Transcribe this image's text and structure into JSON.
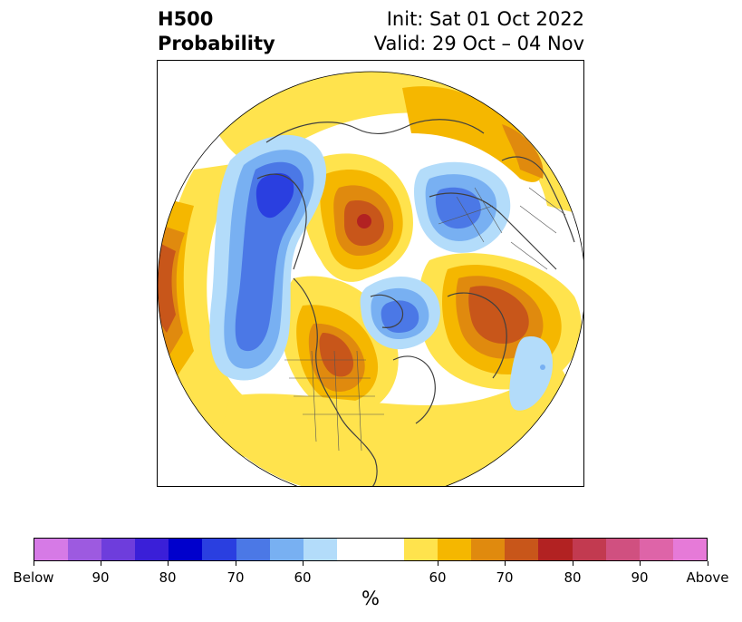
{
  "header": {
    "title_line1": "H500",
    "title_line2": "Probability",
    "init_text": "Init: Sat 01 Oct 2022",
    "valid_text": "Valid: 29 Oct – 04 Nov"
  },
  "colorbar": {
    "colors": [
      "#d67ae6",
      "#9d5ae0",
      "#6e3ddc",
      "#3a1fd8",
      "#0000cc",
      "#2a3fe0",
      "#4b78e6",
      "#78b0f2",
      "#b3dcfa",
      "#ffffff",
      "#ffffff",
      "#ffe34d",
      "#f5b700",
      "#e08a0e",
      "#c8561a",
      "#b22222",
      "#c23a50",
      "#d05080",
      "#de64a8",
      "#e67ad8"
    ],
    "tick_labels": [
      "Below",
      "90",
      "80",
      "70",
      "60",
      "60",
      "70",
      "80",
      "90",
      "Above"
    ],
    "unit": "%"
  },
  "map": {
    "projection": "north-polar-stereographic",
    "variable": "500 hPa height probability",
    "colors": {
      "yellow": "#ffe34d",
      "gold": "#f5b700",
      "orange": "#e08a0e",
      "burnt": "#c8561a",
      "red": "#b22222",
      "lightblue": "#b3dcfa",
      "skyblue": "#78b0f2",
      "blue": "#4b78e6",
      "royal": "#2a3fe0",
      "coast": "#404040"
    }
  }
}
